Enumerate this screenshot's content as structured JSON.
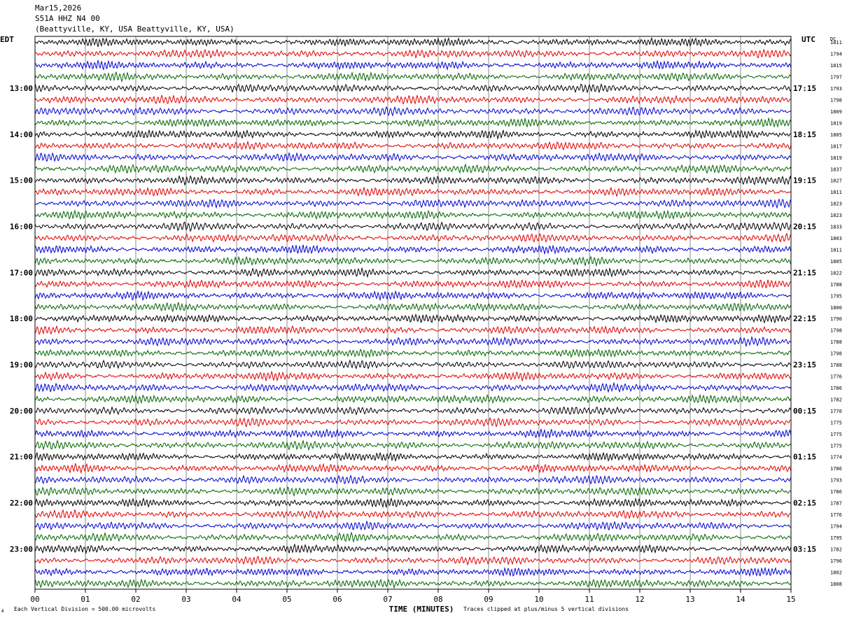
{
  "header": {
    "date": "Mar15,2026",
    "channel": "S51A HHZ N4 00",
    "location": "(Beattyville, KY, USA Beattyville, KY, USA)"
  },
  "left_axis_label": "EDT",
  "right_axis_label": "UTC",
  "dc_label": "DC",
  "footer": {
    "scale": "Each Vertical Division =  500.00 microvolts",
    "clip": "Traces clipped at plus/minus 5 vertical divisions",
    "corner_mark": "A"
  },
  "chart_data": {
    "type": "line",
    "title": "",
    "xlabel": "TIME (MINUTES)",
    "xlim": [
      0,
      15
    ],
    "x_ticks": [
      "00",
      "01",
      "02",
      "03",
      "04",
      "05",
      "06",
      "07",
      "08",
      "09",
      "10",
      "11",
      "12",
      "13",
      "14",
      "15"
    ],
    "trace_colors": [
      "#000000",
      "#e00000",
      "#0000d0",
      "#006400"
    ],
    "grid_color": "#888888",
    "trace_count": 48,
    "left_hour_labels": [
      "13:00",
      "14:00",
      "15:00",
      "16:00",
      "17:00",
      "18:00",
      "19:00",
      "20:00",
      "21:00",
      "22:00",
      "23:00"
    ],
    "right_hour_labels": [
      "17:15",
      "18:15",
      "19:15",
      "20:15",
      "21:15",
      "22:15",
      "23:15",
      "00:15",
      "01:15",
      "02:15",
      "03:15"
    ],
    "dc_offsets": [
      "1811",
      "1794",
      "1815",
      "1797",
      "1793",
      "1798",
      "1809",
      "1819",
      "1805",
      "1817",
      "1819",
      "1837",
      "1827",
      "1811",
      "1823",
      "1823",
      "1833",
      "1803",
      "1811",
      "1805",
      "1822",
      "1788",
      "1795",
      "1800",
      "1790",
      "1798",
      "1788",
      "1798",
      "1788",
      "1776",
      "1786",
      "1782",
      "1770",
      "1775",
      "1775",
      "1775",
      "1774",
      "1786",
      "1793",
      "1786",
      "1787",
      "1776",
      "1794",
      "1795",
      "1782",
      "1796",
      "1802",
      "1808"
    ]
  }
}
